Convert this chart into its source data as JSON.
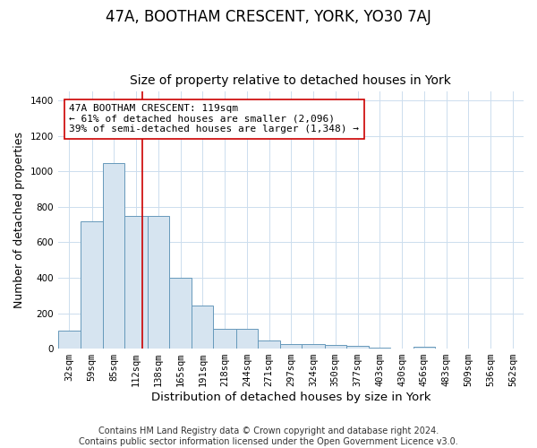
{
  "title": "47A, BOOTHAM CRESCENT, YORK, YO30 7AJ",
  "subtitle": "Size of property relative to detached houses in York",
  "xlabel": "Distribution of detached houses by size in York",
  "ylabel": "Number of detached properties",
  "bar_color": "#d6e4f0",
  "bar_edge_color": "#6699bb",
  "categories": [
    "32sqm",
    "59sqm",
    "85sqm",
    "112sqm",
    "138sqm",
    "165sqm",
    "191sqm",
    "218sqm",
    "244sqm",
    "271sqm",
    "297sqm",
    "324sqm",
    "350sqm",
    "377sqm",
    "403sqm",
    "430sqm",
    "456sqm",
    "483sqm",
    "509sqm",
    "536sqm",
    "562sqm"
  ],
  "bin_edges": [
    18.5,
    45.5,
    72.5,
    98.5,
    125.5,
    151.5,
    178.5,
    204.5,
    231.5,
    257.5,
    284.5,
    310.5,
    337.5,
    363.5,
    390.5,
    416.5,
    443.5,
    469.5,
    496.5,
    522.5,
    549.5,
    575.5
  ],
  "values": [
    100,
    720,
    1045,
    750,
    750,
    400,
    242,
    110,
    110,
    45,
    28,
    28,
    20,
    15,
    8,
    0,
    12,
    0,
    0,
    0,
    0
  ],
  "property_size": 119,
  "red_line_color": "#cc0000",
  "annotation_line1": "47A BOOTHAM CRESCENT: 119sqm",
  "annotation_line2": "← 61% of detached houses are smaller (2,096)",
  "annotation_line3": "39% of semi-detached houses are larger (1,348) →",
  "annotation_box_color": "white",
  "annotation_box_edge_color": "#cc0000",
  "ylim": [
    0,
    1450
  ],
  "yticks": [
    0,
    200,
    400,
    600,
    800,
    1000,
    1200,
    1400
  ],
  "grid_color": "#ccddee",
  "bg_color": "#ffffff",
  "footer": "Contains HM Land Registry data © Crown copyright and database right 2024.\nContains public sector information licensed under the Open Government Licence v3.0.",
  "title_fontsize": 12,
  "subtitle_fontsize": 10,
  "xlabel_fontsize": 9.5,
  "ylabel_fontsize": 9,
  "tick_fontsize": 7.5,
  "annotation_fontsize": 8,
  "footer_fontsize": 7
}
